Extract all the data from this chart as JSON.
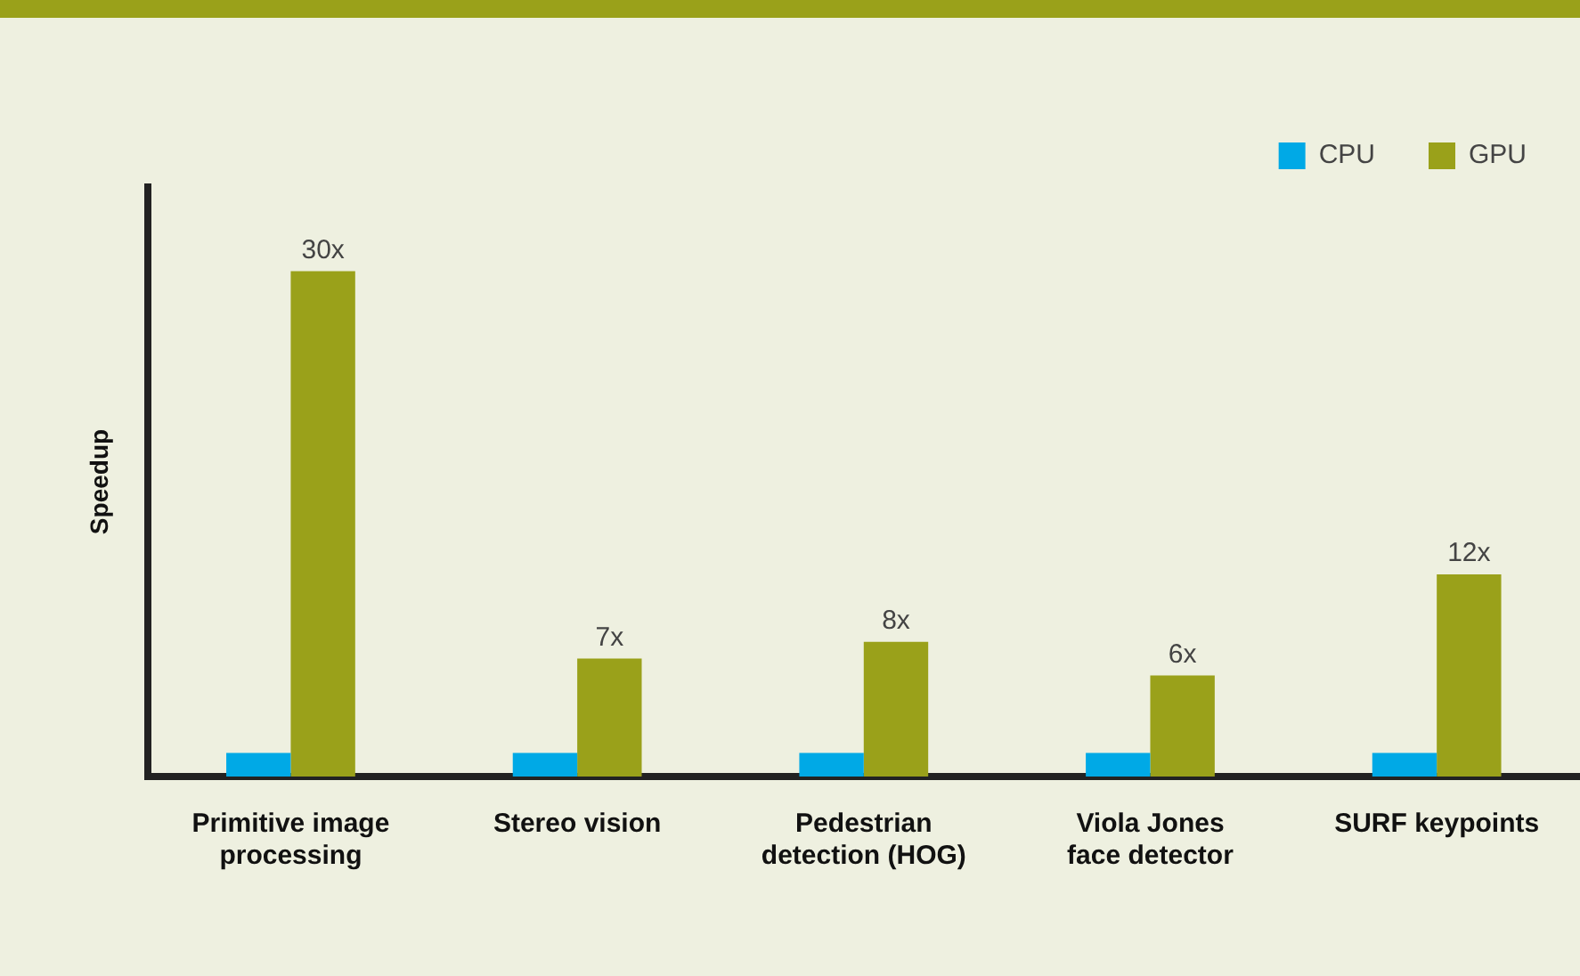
{
  "chart_data": {
    "type": "bar",
    "ylabel": "Speedup",
    "categories": [
      "Primitive image processing",
      "Stereo vision",
      "Pedestrian detection (HOG)",
      "Viola Jones face detector",
      "SURF keypoints"
    ],
    "series": [
      {
        "name": "CPU",
        "color": "#00a9e6",
        "values": [
          1.4,
          1.4,
          1.4,
          1.4,
          1.4
        ]
      },
      {
        "name": "GPU",
        "color": "#9aa11a",
        "values": [
          30,
          7,
          8,
          6,
          12
        ],
        "value_labels": [
          "30x",
          "7x",
          "8x",
          "6x",
          "12x"
        ]
      }
    ],
    "legend": "top right",
    "grid": false
  }
}
